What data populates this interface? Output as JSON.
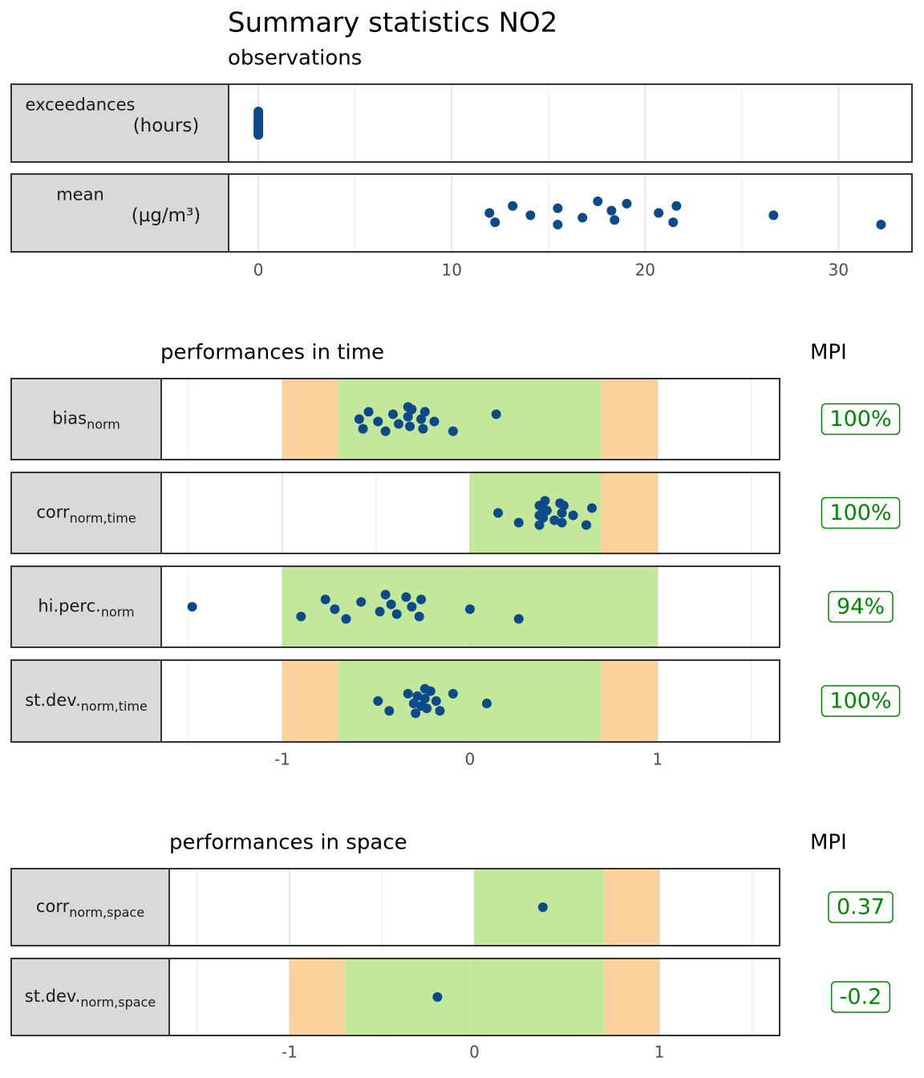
{
  "chart_data": [
    {
      "type": "strip",
      "title": "Summary statistics NO2",
      "subtitle": "observations",
      "color": "#0c4a8a",
      "xlim": [
        -1.54,
        33.8
      ],
      "xticks": [
        0,
        10,
        20,
        30
      ],
      "xminor": [
        5,
        15,
        25
      ],
      "grid": true,
      "panels": [
        {
          "label": "exceedances",
          "unit": "(hours)",
          "values": [
            0,
            0,
            0,
            0,
            0,
            0,
            0,
            0,
            0,
            0,
            0,
            0,
            0,
            0,
            0,
            0
          ]
        },
        {
          "label": "mean",
          "unit": "(µg/m³)",
          "values": [
            11.95,
            12.24,
            13.15,
            14.07,
            15.48,
            15.48,
            16.76,
            17.55,
            18.26,
            18.42,
            19.05,
            20.7,
            21.45,
            21.62,
            26.64,
            32.2
          ]
        }
      ]
    },
    {
      "type": "strip",
      "title": "performances in time",
      "mpi_title": "MPI",
      "color": "#0c4a8a",
      "mpi_color": "#008800",
      "xlim": [
        -1.645,
        1.65
      ],
      "xticks": [
        -1,
        0,
        1
      ],
      "xminor": [
        -1.5,
        -0.5,
        0.5,
        1.5
      ],
      "grid": true,
      "panels": [
        {
          "label": "bias",
          "sub": "norm",
          "bands": [
            {
              "from": -1,
              "to": -0.7,
              "color": "#fdc98a"
            },
            {
              "from": -0.7,
              "to": 0.7,
              "color": "#b8e48a"
            },
            {
              "from": 0.7,
              "to": 1,
              "color": "#fdc98a"
            }
          ],
          "values": [
            -0.59,
            -0.57,
            -0.54,
            -0.49,
            -0.45,
            -0.41,
            -0.38,
            -0.33,
            -0.33,
            -0.32,
            -0.31,
            -0.26,
            -0.25,
            -0.24,
            -0.19,
            -0.09,
            0.14
          ],
          "mpi": 100,
          "mpi_label": "100%"
        },
        {
          "label": "corr",
          "sub": "norm,time",
          "bands": [
            {
              "from": 0,
              "to": 0.7,
              "color": "#b8e48a"
            },
            {
              "from": 0.7,
              "to": 1,
              "color": "#fdc98a"
            }
          ],
          "values": [
            0.15,
            0.26,
            0.37,
            0.37,
            0.37,
            0.39,
            0.39,
            0.4,
            0.41,
            0.45,
            0.48,
            0.49,
            0.49,
            0.5,
            0.55,
            0.62,
            0.65
          ],
          "mpi": 100,
          "mpi_label": "100%"
        },
        {
          "label": "hi.perc.",
          "sub": "norm",
          "bands": [
            {
              "from": -1,
              "to": 1,
              "color": "#b8e48a"
            }
          ],
          "values": [
            -1.48,
            -0.9,
            -0.77,
            -0.72,
            -0.66,
            -0.58,
            -0.48,
            -0.45,
            -0.42,
            -0.39,
            -0.34,
            -0.31,
            -0.27,
            -0.26,
            0,
            0.26
          ],
          "mpi": 94,
          "mpi_label": "94%"
        },
        {
          "label": "st.dev.",
          "sub": "norm,time",
          "bands": [
            {
              "from": -1,
              "to": -0.7,
              "color": "#fdc98a"
            },
            {
              "from": -0.7,
              "to": 0.7,
              "color": "#b8e48a"
            },
            {
              "from": 0.7,
              "to": 1,
              "color": "#fdc98a"
            }
          ],
          "values": [
            -0.49,
            -0.43,
            -0.33,
            -0.3,
            -0.29,
            -0.28,
            -0.26,
            -0.24,
            -0.24,
            -0.23,
            -0.21,
            -0.18,
            -0.16,
            -0.09,
            0.09
          ],
          "mpi": 100,
          "mpi_label": "100%"
        }
      ]
    },
    {
      "type": "strip",
      "title": "performances in space",
      "mpi_title": "MPI",
      "color": "#0c4a8a",
      "mpi_color": "#008800",
      "xlim": [
        -1.65,
        1.65
      ],
      "xticks": [
        -1,
        0,
        1
      ],
      "xminor": [
        -1.5,
        -0.5,
        0.5,
        1.5
      ],
      "grid": true,
      "panels": [
        {
          "label": "corr",
          "sub": "norm,space",
          "bands": [
            {
              "from": 0,
              "to": 0.7,
              "color": "#b8e48a"
            },
            {
              "from": 0.7,
              "to": 1,
              "color": "#fdc98a"
            }
          ],
          "values": [
            0.37
          ],
          "mpi": 0.37
        },
        {
          "label": "st.dev.",
          "sub": "norm,space",
          "bands": [
            {
              "from": -1,
              "to": -0.7,
              "color": "#fdc98a"
            },
            {
              "from": -0.7,
              "to": 0.7,
              "color": "#b8e48a"
            },
            {
              "from": 0.7,
              "to": 1,
              "color": "#fdc98a"
            }
          ],
          "values": [
            -0.2
          ],
          "mpi": -0.2
        }
      ]
    }
  ]
}
